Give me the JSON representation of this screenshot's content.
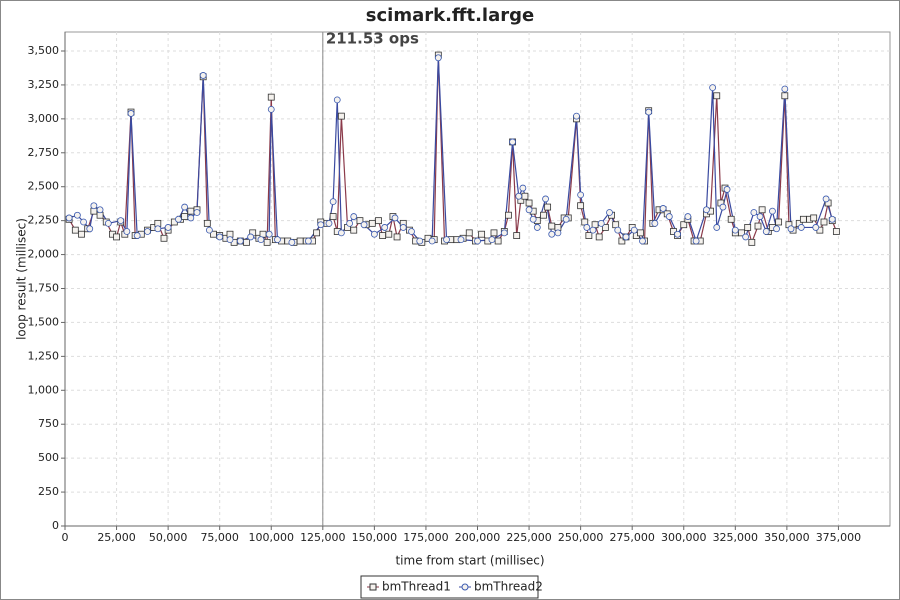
{
  "chart_data": {
    "type": "line",
    "title": "scimark.fft.large",
    "xlabel": "time from start (millisec)",
    "ylabel": "loop result (millisec)",
    "annotation": {
      "x": 125000,
      "label": "211.53 ops"
    },
    "xlim": [
      0,
      400000
    ],
    "ylim": [
      0,
      3640
    ],
    "grid": true,
    "legend": "bottom",
    "xticks": [
      0,
      {
        "value": 25000,
        "label": "25,000"
      },
      {
        "value": 50000,
        "label": "50,000"
      },
      {
        "value": 75000,
        "label": "75,000"
      },
      {
        "value": 100000,
        "label": "100,000"
      },
      {
        "value": 125000,
        "label": "125,000"
      },
      {
        "value": 150000,
        "label": "150,000"
      },
      {
        "value": 175000,
        "label": "175,000"
      },
      {
        "value": 200000,
        "label": "200,000"
      },
      {
        "value": 225000,
        "label": "225,000"
      },
      {
        "value": 250000,
        "label": "250,000"
      },
      {
        "value": 275000,
        "label": "275,000"
      },
      {
        "value": 300000,
        "label": "300,000"
      },
      {
        "value": 325000,
        "label": "325,000"
      },
      {
        "value": 350000,
        "label": "350,000"
      },
      {
        "value": 375000,
        "label": "375,000"
      }
    ],
    "yticks": [
      0,
      250,
      500,
      750,
      {
        "value": 1000,
        "label": "1,000"
      },
      {
        "value": 1250,
        "label": "1,250"
      },
      {
        "value": 1500,
        "label": "1,500"
      },
      {
        "value": 1750,
        "label": "1,750"
      },
      {
        "value": 2000,
        "label": "2,000"
      },
      {
        "value": 2250,
        "label": "2,250"
      },
      {
        "value": 2500,
        "label": "2,500"
      },
      {
        "value": 2750,
        "label": "2,750"
      },
      {
        "value": 3000,
        "label": "3,000"
      },
      {
        "value": 3250,
        "label": "3,250"
      },
      {
        "value": 3500,
        "label": "3,500"
      }
    ],
    "series": [
      {
        "name": "bmThread1",
        "color": "#8b3a4a",
        "marker": "square",
        "x": [
          2000,
          5000,
          8000,
          11000,
          14000,
          17000,
          20000,
          23000,
          25000,
          27000,
          29000,
          32000,
          34000,
          37000,
          40000,
          43000,
          45000,
          48000,
          50000,
          53000,
          56000,
          58000,
          61000,
          64000,
          67000,
          69000,
          72000,
          75000,
          78000,
          80000,
          82000,
          85000,
          88000,
          91000,
          94000,
          96000,
          98000,
          100000,
          102000,
          105000,
          108000,
          111000,
          114000,
          117000,
          120000,
          122000,
          124000,
          127000,
          130000,
          132000,
          134000,
          137000,
          140000,
          143000,
          146000,
          149000,
          152000,
          154000,
          157000,
          159000,
          161000,
          164000,
          167000,
          170000,
          173000,
          176000,
          179000,
          181000,
          184000,
          187000,
          190000,
          193000,
          196000,
          199000,
          202000,
          205000,
          208000,
          210000,
          213000,
          215000,
          217000,
          219000,
          221000,
          223000,
          225000,
          227000,
          229000,
          232000,
          234000,
          236000,
          239000,
          242000,
          244000,
          248000,
          250000,
          252000,
          254000,
          257000,
          259000,
          262000,
          265000,
          267000,
          270000,
          272000,
          275000,
          277000,
          279000,
          281000,
          283000,
          285000,
          288000,
          290000,
          292000,
          295000,
          297000,
          300000,
          302000,
          305000,
          308000,
          311000,
          313000,
          316000,
          318000,
          320000,
          323000,
          325000,
          328000,
          331000,
          333000,
          336000,
          338000,
          341000,
          343000,
          346000,
          349000,
          351000,
          353000,
          356000,
          358000,
          361000,
          363000,
          366000,
          368000,
          370000,
          372000,
          374000
        ],
        "values": [
          2260,
          2180,
          2150,
          2190,
          2320,
          2290,
          2240,
          2150,
          2130,
          2240,
          2150,
          3050,
          2140,
          2150,
          2180,
          2200,
          2230,
          2120,
          2180,
          2240,
          2260,
          2280,
          2320,
          2330,
          3310,
          2230,
          2150,
          2140,
          2120,
          2150,
          2090,
          2100,
          2090,
          2160,
          2120,
          2150,
          2090,
          3160,
          2110,
          2100,
          2100,
          2090,
          2100,
          2100,
          2100,
          2160,
          2240,
          2230,
          2280,
          2170,
          3020,
          2200,
          2180,
          2250,
          2220,
          2230,
          2250,
          2140,
          2150,
          2280,
          2130,
          2230,
          2180,
          2100,
          2090,
          2120,
          2110,
          3470,
          2100,
          2110,
          2110,
          2120,
          2160,
          2100,
          2150,
          2100,
          2160,
          2100,
          2170,
          2290,
          2830,
          2140,
          2400,
          2430,
          2380,
          2320,
          2250,
          2290,
          2350,
          2210,
          2200,
          2270,
          2270,
          3000,
          2360,
          2240,
          2140,
          2220,
          2130,
          2200,
          2290,
          2220,
          2100,
          2130,
          2200,
          2140,
          2160,
          2100,
          3060,
          2230,
          2330,
          2330,
          2300,
          2170,
          2140,
          2220,
          2260,
          2100,
          2100,
          2300,
          2320,
          3170,
          2380,
          2490,
          2260,
          2160,
          2160,
          2200,
          2090,
          2210,
          2330,
          2170,
          2200,
          2240,
          3170,
          2220,
          2180,
          2230,
          2260,
          2260,
          2270,
          2180,
          2240,
          2380,
          2250,
          2170
        ]
      },
      {
        "name": "bmThread2",
        "color": "#3a4aa0",
        "marker": "circle",
        "x": [
          2000,
          6000,
          9000,
          12000,
          14000,
          17000,
          21000,
          27000,
          30000,
          32000,
          35000,
          40000,
          45000,
          50000,
          55000,
          58000,
          61000,
          64000,
          67000,
          70000,
          75000,
          80000,
          85000,
          90000,
          95000,
          99000,
          100000,
          103000,
          110000,
          118000,
          124000,
          128000,
          130000,
          132000,
          134000,
          138000,
          140000,
          145000,
          150000,
          155000,
          160000,
          164000,
          168000,
          172000,
          178000,
          181000,
          185000,
          192000,
          200000,
          207000,
          213000,
          217000,
          220000,
          222000,
          225000,
          227000,
          229000,
          233000,
          236000,
          239000,
          243000,
          248000,
          250000,
          253000,
          256000,
          260000,
          264000,
          268000,
          272000,
          276000,
          280000,
          283000,
          286000,
          290000,
          293000,
          297000,
          302000,
          306000,
          311000,
          314000,
          316000,
          319000,
          321000,
          325000,
          330000,
          334000,
          337000,
          340000,
          343000,
          345000,
          349000,
          352000,
          357000,
          364000,
          369000,
          372000
        ],
        "values": [
          2270,
          2290,
          2240,
          2190,
          2360,
          2330,
          2230,
          2250,
          2170,
          3040,
          2140,
          2170,
          2190,
          2200,
          2260,
          2350,
          2270,
          2310,
          3320,
          2180,
          2130,
          2110,
          2100,
          2130,
          2110,
          2150,
          3070,
          2110,
          2090,
          2100,
          2220,
          2230,
          2390,
          3140,
          2160,
          2230,
          2280,
          2220,
          2150,
          2200,
          2270,
          2200,
          2170,
          2100,
          2100,
          3450,
          2110,
          2110,
          2100,
          2110,
          2160,
          2830,
          2430,
          2490,
          2330,
          2260,
          2200,
          2410,
          2150,
          2160,
          2260,
          3020,
          2440,
          2200,
          2180,
          2230,
          2310,
          2180,
          2130,
          2180,
          2100,
          3050,
          2230,
          2340,
          2280,
          2150,
          2280,
          2100,
          2330,
          3230,
          2200,
          2350,
          2480,
          2180,
          2130,
          2310,
          2280,
          2170,
          2320,
          2190,
          3220,
          2190,
          2200,
          2200,
          2410,
          2260
        ]
      }
    ]
  }
}
